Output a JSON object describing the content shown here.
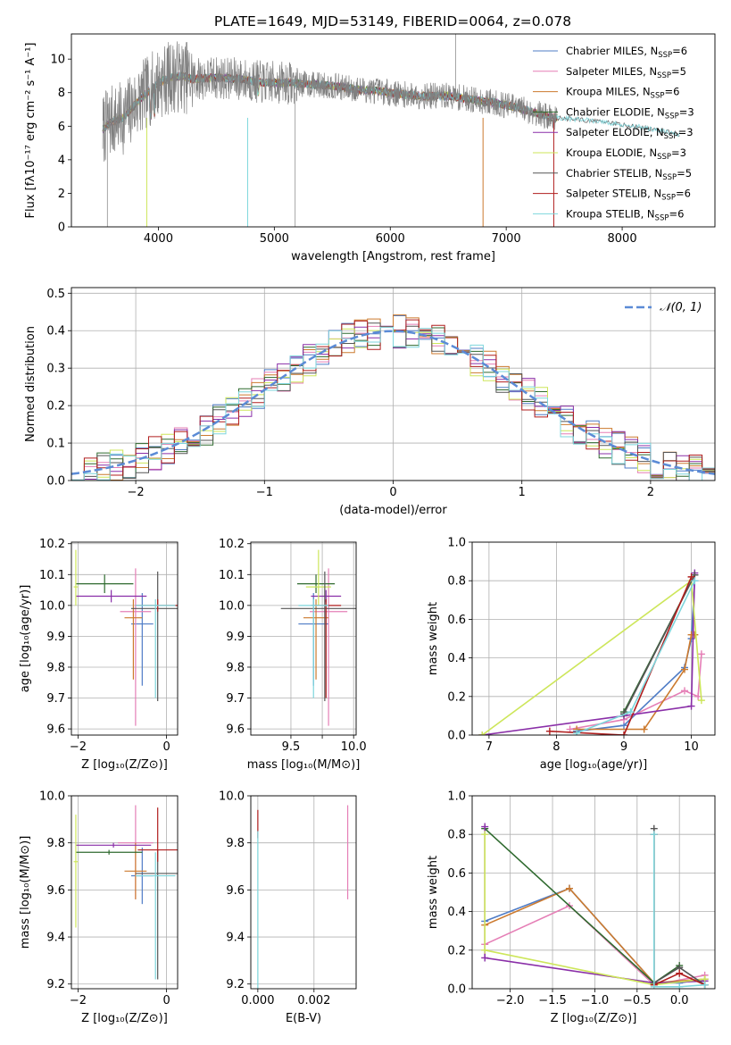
{
  "figure": {
    "title": "PLATE=1649, MJD=53149, FIBERID=0064, z=0.078"
  },
  "colors": {
    "chabrier_miles": "#4f7cc6",
    "salpeter_miles": "#e57fb6",
    "kroupa_miles": "#cc7a2e",
    "chabrier_elodie": "#2f6a2f",
    "salpeter_elodie": "#8a2fa8",
    "kroupa_elodie": "#cde65a",
    "chabrier_stelib": "#555555",
    "salpeter_stelib": "#b01e1e",
    "kroupa_stelib": "#7dd6dc",
    "data": "#808080",
    "gaussian": "#5b8bd6",
    "grid": "#b0b0b0"
  },
  "chart_data": [
    {
      "id": "spectrum",
      "type": "line",
      "title": "PLATE=1649, MJD=53149, FIBERID=0064, z=0.078",
      "xlabel": "wavelength [Angstrom, rest frame]",
      "ylabel": "Flux [f_λ10^-17 erg cm^-2 s^-1 A^-1]",
      "xlim": [
        3250,
        8800
      ],
      "ylim": [
        0,
        11.5
      ],
      "xticks": [
        4000,
        5000,
        6000,
        7000,
        8000
      ],
      "yticks": [
        0,
        2,
        4,
        6,
        8,
        10
      ],
      "grid": false,
      "legend_position": "top-right",
      "legend": [
        {
          "label": "Chabrier MILES, N_SSP=6",
          "color_key": "chabrier_miles"
        },
        {
          "label": "Salpeter MILES, N_SSP=5",
          "color_key": "salpeter_miles"
        },
        {
          "label": "Kroupa MILES, N_SSP=6",
          "color_key": "kroupa_miles"
        },
        {
          "label": "Chabrier ELODIE, N_SSP=3",
          "color_key": "chabrier_elodie"
        },
        {
          "label": "Salpeter ELODIE, N_SSP=3",
          "color_key": "salpeter_elodie"
        },
        {
          "label": "Kroupa ELODIE, N_SSP=3",
          "color_key": "kroupa_elodie"
        },
        {
          "label": "Chabrier STELIB, N_SSP=5",
          "color_key": "chabrier_stelib"
        },
        {
          "label": "Salpeter STELIB, N_SSP=6",
          "color_key": "salpeter_stelib"
        },
        {
          "label": "Kroupa STELIB, N_SSP=6",
          "color_key": "kroupa_stelib"
        }
      ],
      "continuum": {
        "x": [
          3520,
          3600,
          3700,
          3800,
          3900,
          4000,
          4100,
          4200,
          4300,
          4500,
          4700,
          4900,
          5100,
          5300,
          5500,
          5700,
          5900,
          6100,
          6300,
          6500,
          6700,
          6900,
          7100,
          7300,
          7400
        ],
        "y": [
          5.8,
          6.3,
          6.5,
          7.3,
          8.0,
          8.6,
          8.9,
          9.0,
          8.8,
          8.9,
          8.8,
          8.6,
          8.6,
          8.5,
          8.4,
          8.2,
          8.1,
          7.9,
          7.8,
          7.8,
          7.6,
          7.4,
          7.1,
          6.7,
          6.5
        ]
      },
      "data_range": [
        3520,
        7440
      ],
      "stelib_extension": {
        "x": [
          7440,
          7800,
          8200,
          8500
        ],
        "y": [
          6.5,
          6.3,
          5.9,
          5.5
        ]
      }
    },
    {
      "id": "residuals",
      "type": "line",
      "xlabel": "(data-model)/error",
      "ylabel": "Normed distribution",
      "xlim": [
        -2.5,
        2.5
      ],
      "ylim": [
        0,
        0.515
      ],
      "xticks": [
        -2,
        -1,
        0,
        1,
        2
      ],
      "yticks": [
        0.0,
        0.1,
        0.2,
        0.3,
        0.4,
        0.5
      ],
      "grid": true,
      "legend_position": "top-right",
      "legend": [
        {
          "label": "N(0,1)",
          "color_key": "gaussian"
        }
      ],
      "gaussian": {
        "mean": 0,
        "sigma": 1
      }
    },
    {
      "id": "age_vs_Z",
      "type": "scatter",
      "xlabel": "Z [log10(Z/Z_sun)]",
      "ylabel": "age [log10(age/yr)]",
      "xlim": [
        -2.15,
        0.25
      ],
      "ylim": [
        9.58,
        10.205
      ],
      "xticks": [
        -2,
        0
      ],
      "yticks": [
        9.6,
        9.7,
        9.8,
        9.9,
        10.0,
        10.1,
        10.2
      ],
      "grid": true,
      "points": [
        {
          "key": "chabrier_miles",
          "x": -0.55,
          "y": 9.94,
          "xerr": 0.25,
          "yerr_lo": 0.2,
          "yerr_hi": 0.1
        },
        {
          "key": "salpeter_miles",
          "x": -0.7,
          "y": 9.98,
          "xerr": 0.35,
          "yerr_lo": 0.37,
          "yerr_hi": 0.14
        },
        {
          "key": "kroupa_miles",
          "x": -0.75,
          "y": 9.96,
          "xerr": 0.2,
          "yerr_lo": 0.2,
          "yerr_hi": 0.06
        },
        {
          "key": "chabrier_elodie",
          "x": -1.4,
          "y": 10.07,
          "xerr": 0.65,
          "yerr_lo": 0.03,
          "yerr_hi": 0.03
        },
        {
          "key": "salpeter_elodie",
          "x": -1.25,
          "y": 10.03,
          "xerr": 0.8,
          "yerr_lo": 0.02,
          "yerr_hi": 0.02
        },
        {
          "key": "kroupa_elodie",
          "x": -2.05,
          "y": 10.06,
          "xerr": 0.05,
          "yerr_lo": 0.06,
          "yerr_hi": 0.12
        },
        {
          "key": "chabrier_stelib",
          "x": -0.2,
          "y": 9.99,
          "xerr": 0.6,
          "yerr_lo": 0.3,
          "yerr_hi": 0.12
        },
        {
          "key": "salpeter_stelib",
          "x": -0.2,
          "y": 10.0,
          "xerr": 0.5,
          "yerr_lo": 0.02,
          "yerr_hi": 0.02
        },
        {
          "key": "kroupa_stelib",
          "x": -0.25,
          "y": 10.0,
          "xerr": 0.45,
          "yerr_lo": 0.3,
          "yerr_hi": 0.02
        }
      ]
    },
    {
      "id": "age_vs_mass",
      "type": "scatter",
      "xlabel": "mass [log10(M/M_sun)]",
      "ylabel": "",
      "xlim": [
        9.18,
        10.02
      ],
      "ylim": [
        9.58,
        10.205
      ],
      "xticks": [
        9.5,
        9.75,
        10.0
      ],
      "xticklabels": [
        "9.5",
        "",
        "10.0"
      ],
      "yticks": [
        9.6,
        9.7,
        9.8,
        9.9,
        10.0,
        10.1,
        10.2
      ],
      "grid": true,
      "points": [
        {
          "key": "chabrier_miles",
          "x": 9.68,
          "y": 9.94,
          "xerr": 0.12,
          "yerr_lo": 0.2,
          "yerr_hi": 0.1
        },
        {
          "key": "salpeter_miles",
          "x": 9.8,
          "y": 9.98,
          "xerr": 0.15,
          "yerr_lo": 0.37,
          "yerr_hi": 0.14
        },
        {
          "key": "kroupa_miles",
          "x": 9.7,
          "y": 9.96,
          "xerr": 0.1,
          "yerr_lo": 0.2,
          "yerr_hi": 0.06
        },
        {
          "key": "chabrier_elodie",
          "x": 9.7,
          "y": 10.07,
          "xerr": 0.15,
          "yerr_lo": 0.03,
          "yerr_hi": 0.03
        },
        {
          "key": "salpeter_elodie",
          "x": 9.78,
          "y": 10.03,
          "xerr": 0.12,
          "yerr_lo": 0.02,
          "yerr_hi": 0.02
        },
        {
          "key": "kroupa_elodie",
          "x": 9.72,
          "y": 10.06,
          "xerr": 0.1,
          "yerr_lo": 0.06,
          "yerr_hi": 0.12
        },
        {
          "key": "chabrier_stelib",
          "x": 9.77,
          "y": 9.99,
          "xerr": 0.35,
          "yerr_lo": 0.3,
          "yerr_hi": 0.12
        },
        {
          "key": "salpeter_stelib",
          "x": 9.78,
          "y": 10.0,
          "xerr": 0.12,
          "yerr_lo": 0.3,
          "yerr_hi": 0.02
        },
        {
          "key": "kroupa_stelib",
          "x": 9.68,
          "y": 10.0,
          "xerr": 0.12,
          "yerr_lo": 0.3,
          "yerr_hi": 0.02
        }
      ]
    },
    {
      "id": "weight_vs_age",
      "type": "line",
      "xlabel": "age [log10(age/yr)]",
      "ylabel": "mass weight",
      "xlim": [
        6.75,
        10.35
      ],
      "ylim": [
        0,
        1.0
      ],
      "xticks": [
        7,
        8,
        9,
        10
      ],
      "yticks": [
        0.0,
        0.2,
        0.4,
        0.6,
        0.8,
        1.0
      ],
      "grid": true,
      "series": [
        {
          "key": "chabrier_miles",
          "x": [
            8.3,
            9.0,
            9.9,
            10.0,
            10.05
          ],
          "y": [
            0.02,
            0.05,
            0.35,
            0.5,
            0.8
          ]
        },
        {
          "key": "salpeter_miles",
          "x": [
            8.2,
            9.0,
            9.9,
            10.1,
            10.15
          ],
          "y": [
            0.03,
            0.08,
            0.23,
            0.2,
            0.42
          ]
        },
        {
          "key": "kroupa_miles",
          "x": [
            8.3,
            9.3,
            9.9,
            10.0,
            10.05
          ],
          "y": [
            0.03,
            0.03,
            0.34,
            0.52,
            0.52
          ]
        },
        {
          "key": "chabrier_elodie",
          "x": [
            9.0,
            10.05
          ],
          "y": [
            0.12,
            0.83
          ]
        },
        {
          "key": "salpeter_elodie",
          "x": [
            6.9,
            9.0,
            10.0,
            10.05
          ],
          "y": [
            0.0,
            0.1,
            0.15,
            0.84
          ]
        },
        {
          "key": "kroupa_elodie",
          "x": [
            6.9,
            10.0,
            10.15
          ],
          "y": [
            0.0,
            0.8,
            0.18
          ]
        },
        {
          "key": "chabrier_stelib",
          "x": [
            9.0,
            10.05
          ],
          "y": [
            0.11,
            0.83
          ]
        },
        {
          "key": "salpeter_stelib",
          "x": [
            7.9,
            9.0,
            10.0
          ],
          "y": [
            0.02,
            0.0,
            0.82
          ]
        },
        {
          "key": "kroupa_stelib",
          "x": [
            8.3,
            9.1,
            10.05
          ],
          "y": [
            0.01,
            0.12,
            0.8
          ]
        }
      ]
    },
    {
      "id": "mass_vs_Z",
      "type": "scatter",
      "xlabel": "Z [log10(Z/Z_sun)]",
      "ylabel": "mass [log10(M/M_sun)]",
      "xlim": [
        -2.15,
        0.25
      ],
      "ylim": [
        9.18,
        10.0
      ],
      "xticks": [
        -2,
        0
      ],
      "yticks": [
        9.2,
        9.4,
        9.6,
        9.8,
        10.0
      ],
      "grid": true,
      "points": [
        {
          "key": "chabrier_miles",
          "x": -0.55,
          "y": 9.66,
          "xerr": 0.25,
          "yerr_lo": 0.12,
          "yerr_hi": 0.12
        },
        {
          "key": "salpeter_miles",
          "x": -0.7,
          "y": 9.8,
          "xerr": 0.4,
          "yerr_lo": 0.24,
          "yerr_hi": 0.16
        },
        {
          "key": "kroupa_miles",
          "x": -0.7,
          "y": 9.68,
          "xerr": 0.25,
          "yerr_lo": 0.12,
          "yerr_hi": 0.12
        },
        {
          "key": "chabrier_elodie",
          "x": -1.3,
          "y": 9.76,
          "xerr": 0.75,
          "yerr_lo": 0.01,
          "yerr_hi": 0.01
        },
        {
          "key": "salpeter_elodie",
          "x": -1.2,
          "y": 9.79,
          "xerr": 0.85,
          "yerr_lo": 0.01,
          "yerr_hi": 0.01
        },
        {
          "key": "kroupa_elodie",
          "x": -2.05,
          "y": 9.72,
          "xerr": 0.05,
          "yerr_lo": 0.28,
          "yerr_hi": 0.2
        },
        {
          "key": "chabrier_stelib",
          "x": -0.2,
          "y": 9.67,
          "xerr": 0.5,
          "yerr_lo": 0.45,
          "yerr_hi": 0.1
        },
        {
          "key": "salpeter_stelib",
          "x": -0.2,
          "y": 9.77,
          "xerr": 0.45,
          "yerr_lo": 0.05,
          "yerr_hi": 0.18
        },
        {
          "key": "kroupa_stelib",
          "x": -0.25,
          "y": 9.66,
          "xerr": 0.45,
          "yerr_lo": 0.44,
          "yerr_hi": 0.1
        }
      ]
    },
    {
      "id": "mass_vs_EBV",
      "type": "scatter",
      "xlabel": "E(B-V)",
      "ylabel": "",
      "xlim": [
        -0.00025,
        0.0035
      ],
      "ylim": [
        9.18,
        10.0
      ],
      "xticks": [
        0.0,
        0.002
      ],
      "xticklabels": [
        "0.000",
        "0.002"
      ],
      "yticks": [
        9.2,
        9.4,
        9.6,
        9.8,
        10.0
      ],
      "grid": true,
      "points": [
        {
          "key": "salpeter_miles",
          "x": 0.0032,
          "y": 9.77,
          "xerr": 0,
          "yerr_lo": 0.21,
          "yerr_hi": 0.19
        },
        {
          "key": "salpeter_stelib",
          "x": 0.0,
          "y": 9.88,
          "xerr": 0,
          "yerr_lo": 0.06,
          "yerr_hi": 0.06
        },
        {
          "key": "kroupa_stelib",
          "x": 0.0,
          "y": 9.6,
          "xerr": 0,
          "yerr_lo": 0.42,
          "yerr_hi": 0.25
        }
      ]
    },
    {
      "id": "weight_vs_Z",
      "type": "line",
      "xlabel": "Z [log10(Z/Z_sun)]",
      "ylabel": "mass weight",
      "xlim": [
        -2.45,
        0.42
      ],
      "ylim": [
        0,
        1.0
      ],
      "xticks": [
        -2.0,
        -1.5,
        -1.0,
        -0.5,
        0.0
      ],
      "yticks": [
        0.0,
        0.2,
        0.4,
        0.6,
        0.8,
        1.0
      ],
      "grid": true,
      "series": [
        {
          "key": "chabrier_miles",
          "x": [
            -2.3,
            -1.3,
            -0.3,
            0.0,
            0.3
          ],
          "y": [
            0.35,
            0.52,
            0.03,
            0.03,
            0.05
          ]
        },
        {
          "key": "salpeter_miles",
          "x": [
            -2.3,
            -1.3,
            -0.3,
            0.3
          ],
          "y": [
            0.23,
            0.43,
            0.02,
            0.07
          ]
        },
        {
          "key": "kroupa_miles",
          "x": [
            -2.3,
            -1.3,
            -0.3,
            0.3
          ],
          "y": [
            0.33,
            0.52,
            0.03,
            0.05
          ]
        },
        {
          "key": "chabrier_elodie",
          "x": [
            -2.3,
            -0.3,
            0.0
          ],
          "y": [
            0.83,
            0.03,
            0.12
          ]
        },
        {
          "key": "salpeter_elodie",
          "x": [
            -2.3,
            -2.3,
            -0.3,
            0.3
          ],
          "y": [
            0.84,
            0.16,
            0.03,
            0.04
          ]
        },
        {
          "key": "kroupa_elodie",
          "x": [
            -2.3,
            -2.3,
            -0.3,
            0.3
          ],
          "y": [
            0.8,
            0.2,
            0.02,
            0.05
          ]
        },
        {
          "key": "chabrier_stelib",
          "x": [
            -0.3,
            -0.3,
            0.0,
            0.3
          ],
          "y": [
            0.83,
            0.03,
            0.11,
            0.02
          ]
        },
        {
          "key": "salpeter_stelib",
          "x": [
            -0.3,
            -0.3,
            0.0,
            0.3
          ],
          "y": [
            0.8,
            0.02,
            0.08,
            0.02
          ]
        },
        {
          "key": "kroupa_stelib",
          "x": [
            -0.3,
            -0.3,
            0.0,
            0.3
          ],
          "y": [
            0.8,
            0.01,
            0.01,
            0.02
          ]
        }
      ]
    }
  ]
}
